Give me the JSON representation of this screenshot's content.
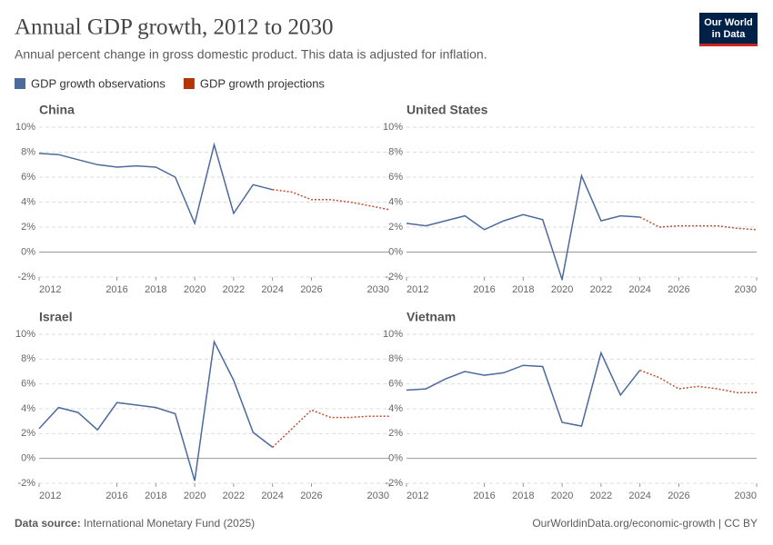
{
  "title": "Annual GDP growth, 2012 to 2030",
  "subtitle": "Annual percent change in gross domestic product. This data is adjusted for inflation.",
  "logo": [
    "Our World",
    "in Data"
  ],
  "legend": [
    {
      "name": "GDP growth observations",
      "color": "#4c6a9c",
      "dash": false
    },
    {
      "name": "GDP growth projections",
      "color": "#b13507",
      "dash": true
    }
  ],
  "footer": {
    "source_label": "Data source:",
    "source": "International Monetary Fund (2025)",
    "credit": "OurWorldinData.org/economic-growth | CC BY"
  },
  "chart_data": [
    {
      "type": "line",
      "title": "China",
      "x": [
        2012,
        2013,
        2014,
        2015,
        2016,
        2017,
        2018,
        2019,
        2020,
        2021,
        2022,
        2023,
        2024,
        2025,
        2026,
        2027,
        2028,
        2029,
        2030
      ],
      "series": [
        {
          "values": [
            7.9,
            7.8,
            7.4,
            7.0,
            6.8,
            6.9,
            6.8,
            6.0,
            2.3,
            8.6,
            3.1,
            5.4,
            5.0,
            null,
            null,
            null,
            null,
            null,
            null
          ]
        },
        {
          "values": [
            null,
            null,
            null,
            null,
            null,
            null,
            null,
            null,
            null,
            null,
            null,
            null,
            5.0,
            4.8,
            4.2,
            4.2,
            4.0,
            3.7,
            3.4
          ]
        }
      ],
      "xlim": [
        2012,
        2030
      ],
      "xticks": [
        2012,
        2016,
        2018,
        2020,
        2022,
        2024,
        2026,
        2030
      ],
      "ylim": [
        -2,
        10
      ],
      "yticks": [
        {
          "value": -2,
          "label": "-2%"
        },
        {
          "value": 0,
          "label": "0%"
        },
        {
          "value": 2,
          "label": "2%"
        },
        {
          "value": 4,
          "label": "4%"
        },
        {
          "value": 6,
          "label": "6%"
        },
        {
          "value": 8,
          "label": "8%"
        },
        {
          "value": 10,
          "label": "10%"
        }
      ],
      "grid": true
    },
    {
      "type": "line",
      "title": "United States",
      "x": [
        2012,
        2013,
        2014,
        2015,
        2016,
        2017,
        2018,
        2019,
        2020,
        2021,
        2022,
        2023,
        2024,
        2025,
        2026,
        2027,
        2028,
        2029,
        2030
      ],
      "series": [
        {
          "values": [
            2.3,
            2.1,
            2.5,
            2.9,
            1.8,
            2.5,
            3.0,
            2.6,
            -2.2,
            6.1,
            2.5,
            2.9,
            2.8,
            null,
            null,
            null,
            null,
            null,
            null
          ]
        },
        {
          "values": [
            null,
            null,
            null,
            null,
            null,
            null,
            null,
            null,
            null,
            null,
            null,
            null,
            2.8,
            2.0,
            2.1,
            2.1,
            2.1,
            1.9,
            1.8
          ]
        }
      ],
      "xlim": [
        2012,
        2030
      ],
      "xticks": [
        2012,
        2016,
        2018,
        2020,
        2022,
        2024,
        2026,
        2030
      ],
      "ylim": [
        -2,
        10
      ],
      "yticks": [
        {
          "value": -2,
          "label": "-2%"
        },
        {
          "value": 0,
          "label": "0%"
        },
        {
          "value": 2,
          "label": "2%"
        },
        {
          "value": 4,
          "label": "4%"
        },
        {
          "value": 6,
          "label": "6%"
        },
        {
          "value": 8,
          "label": "8%"
        },
        {
          "value": 10,
          "label": "10%"
        }
      ],
      "grid": true
    },
    {
      "type": "line",
      "title": "Israel",
      "x": [
        2012,
        2013,
        2014,
        2015,
        2016,
        2017,
        2018,
        2019,
        2020,
        2021,
        2022,
        2023,
        2024,
        2025,
        2026,
        2027,
        2028,
        2029,
        2030
      ],
      "series": [
        {
          "values": [
            2.4,
            4.1,
            3.7,
            2.3,
            4.5,
            4.3,
            4.1,
            3.6,
            -1.8,
            9.4,
            6.3,
            2.1,
            0.9,
            null,
            null,
            null,
            null,
            null,
            null
          ]
        },
        {
          "values": [
            null,
            null,
            null,
            null,
            null,
            null,
            null,
            null,
            null,
            null,
            null,
            null,
            0.9,
            2.4,
            3.9,
            3.3,
            3.3,
            3.4,
            3.4
          ]
        }
      ],
      "xlim": [
        2012,
        2030
      ],
      "xticks": [
        2012,
        2016,
        2018,
        2020,
        2022,
        2024,
        2026,
        2030
      ],
      "ylim": [
        -2,
        10
      ],
      "yticks": [
        {
          "value": -2,
          "label": "-2%"
        },
        {
          "value": 0,
          "label": "0%"
        },
        {
          "value": 2,
          "label": "2%"
        },
        {
          "value": 4,
          "label": "4%"
        },
        {
          "value": 6,
          "label": "6%"
        },
        {
          "value": 8,
          "label": "8%"
        },
        {
          "value": 10,
          "label": "10%"
        }
      ],
      "grid": true
    },
    {
      "type": "line",
      "title": "Vietnam",
      "x": [
        2012,
        2013,
        2014,
        2015,
        2016,
        2017,
        2018,
        2019,
        2020,
        2021,
        2022,
        2023,
        2024,
        2025,
        2026,
        2027,
        2028,
        2029,
        2030
      ],
      "series": [
        {
          "values": [
            5.5,
            5.6,
            6.4,
            7.0,
            6.7,
            6.9,
            7.5,
            7.4,
            2.9,
            2.6,
            8.5,
            5.1,
            7.1,
            null,
            null,
            null,
            null,
            null,
            null
          ]
        },
        {
          "values": [
            null,
            null,
            null,
            null,
            null,
            null,
            null,
            null,
            null,
            null,
            null,
            null,
            7.1,
            6.5,
            5.6,
            5.8,
            5.6,
            5.3,
            5.3
          ]
        }
      ],
      "xlim": [
        2012,
        2030
      ],
      "xticks": [
        2012,
        2016,
        2018,
        2020,
        2022,
        2024,
        2026,
        2030
      ],
      "ylim": [
        -2,
        10
      ],
      "yticks": [
        {
          "value": -2,
          "label": "-2%"
        },
        {
          "value": 0,
          "label": "0%"
        },
        {
          "value": 2,
          "label": "2%"
        },
        {
          "value": 4,
          "label": "4%"
        },
        {
          "value": 6,
          "label": "6%"
        },
        {
          "value": 8,
          "label": "8%"
        },
        {
          "value": 10,
          "label": "10%"
        }
      ],
      "grid": true
    }
  ]
}
